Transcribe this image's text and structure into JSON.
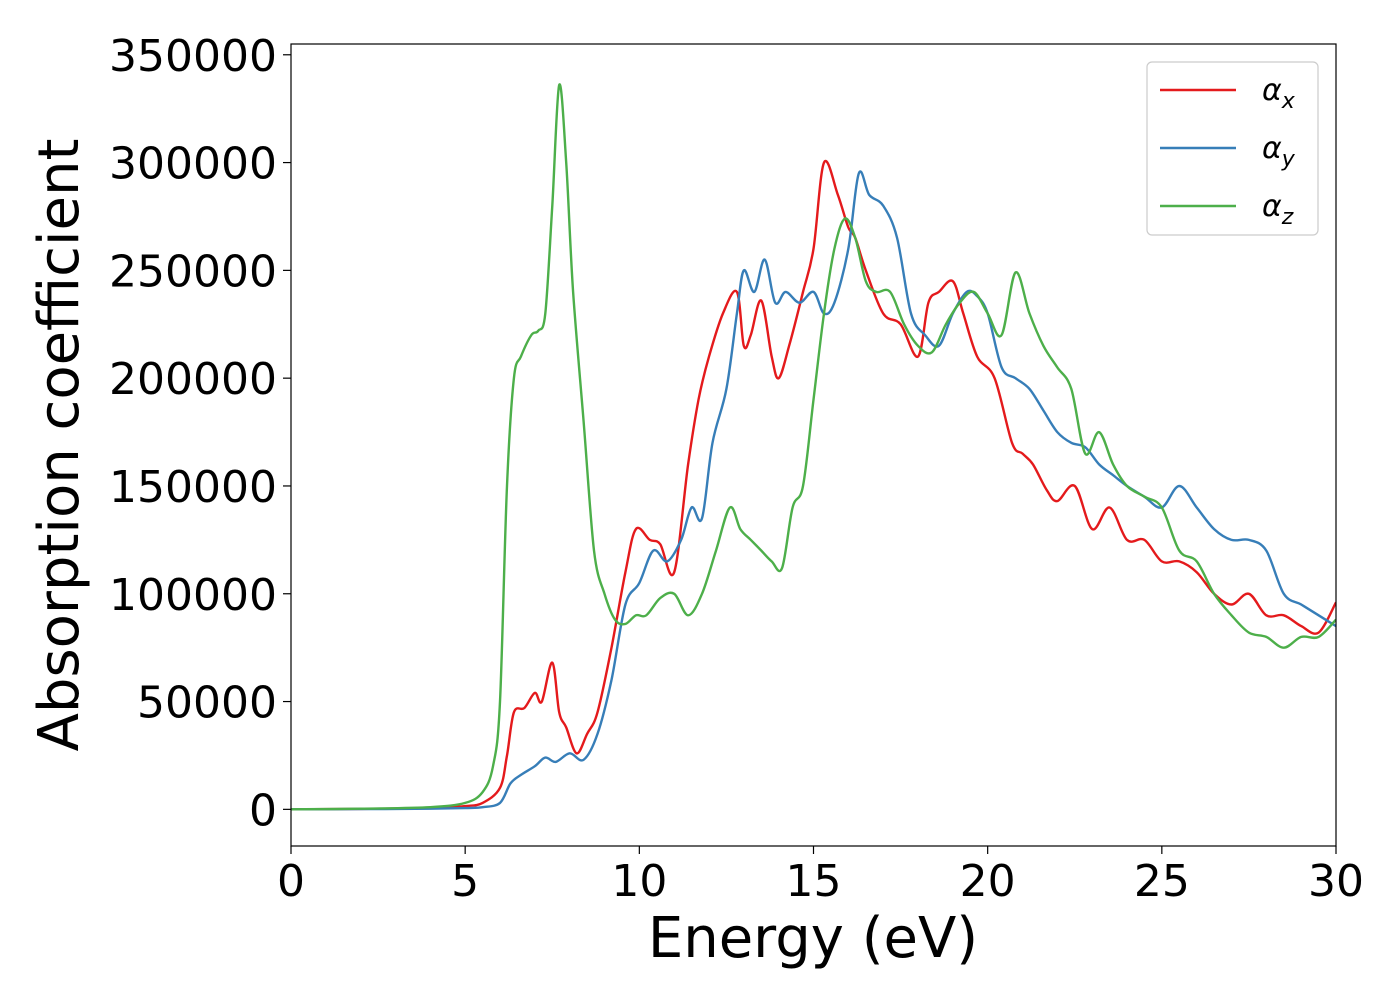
{
  "chart_data": {
    "type": "line",
    "title": "",
    "xlabel": "Energy (eV)",
    "ylabel": "Absorption coefficient",
    "xlim": [
      0,
      30
    ],
    "ylim": [
      -17000,
      355000
    ],
    "xticks": [
      0,
      5,
      10,
      15,
      20,
      25,
      30
    ],
    "yticks": [
      0,
      50000,
      100000,
      150000,
      200000,
      250000,
      300000,
      350000
    ],
    "grid": false,
    "legend_position": "top-right",
    "series": [
      {
        "name": "αx",
        "symbol": "α",
        "subscript": "x",
        "color": "#e41a1c",
        "x": [
          0,
          2,
          4,
          5,
          5.5,
          6,
          6.2,
          6.4,
          6.7,
          7,
          7.2,
          7.5,
          7.7,
          7.9,
          8.2,
          8.5,
          8.8,
          9.2,
          9.6,
          9.9,
          10.3,
          10.6,
          11,
          11.4,
          11.7,
          12,
          12.4,
          12.8,
          13,
          13.2,
          13.5,
          13.8,
          14,
          14.3,
          14.7,
          15,
          15.3,
          15.7,
          16,
          16.2,
          16.5,
          17,
          17.5,
          18,
          18.3,
          18.6,
          19,
          19.3,
          19.7,
          20.2,
          20.7,
          21,
          21.3,
          21.7,
          22,
          22.5,
          23,
          23.5,
          24,
          24.5,
          25,
          25.5,
          26,
          26.5,
          27,
          27.5,
          28,
          28.5,
          29,
          29.5,
          30
        ],
        "y": [
          0,
          200,
          600,
          1500,
          3000,
          10000,
          25000,
          45000,
          47000,
          54000,
          50000,
          68000,
          45000,
          38000,
          26000,
          35000,
          45000,
          75000,
          110000,
          130000,
          125000,
          123000,
          110000,
          160000,
          190000,
          210000,
          230000,
          240000,
          215000,
          220000,
          236000,
          210000,
          200000,
          215000,
          240000,
          260000,
          300000,
          285000,
          270000,
          265000,
          250000,
          230000,
          225000,
          210000,
          235000,
          240000,
          245000,
          230000,
          210000,
          200000,
          170000,
          165000,
          160000,
          148000,
          143000,
          150000,
          130000,
          140000,
          125000,
          125000,
          115000,
          115000,
          110000,
          100000,
          95000,
          100000,
          90000,
          90000,
          85000,
          82000,
          96000
        ]
      },
      {
        "name": "αy",
        "symbol": "α",
        "subscript": "y",
        "color": "#377eb8",
        "x": [
          0,
          2,
          4,
          5,
          5.5,
          6,
          6.3,
          6.6,
          7,
          7.3,
          7.6,
          8,
          8.4,
          8.8,
          9.2,
          9.6,
          10,
          10.4,
          10.8,
          11.2,
          11.5,
          11.8,
          12.1,
          12.5,
          12.8,
          13,
          13.3,
          13.6,
          13.9,
          14.2,
          14.6,
          15,
          15.3,
          15.6,
          16,
          16.3,
          16.6,
          17,
          17.4,
          17.8,
          18.2,
          18.6,
          19,
          19.4,
          19.7,
          20,
          20.4,
          20.8,
          21.2,
          21.6,
          22,
          22.4,
          22.8,
          23.2,
          23.6,
          24,
          24.5,
          25,
          25.5,
          26,
          26.5,
          27,
          27.5,
          28,
          28.5,
          29,
          29.5,
          30
        ],
        "y": [
          0,
          100,
          300,
          600,
          1000,
          3000,
          12000,
          16000,
          20000,
          24000,
          22000,
          26000,
          23000,
          35000,
          60000,
          95000,
          105000,
          120000,
          115000,
          125000,
          140000,
          135000,
          170000,
          195000,
          230000,
          250000,
          240000,
          255000,
          235000,
          240000,
          235000,
          240000,
          230000,
          235000,
          260000,
          295000,
          285000,
          280000,
          265000,
          230000,
          220000,
          215000,
          230000,
          240000,
          238000,
          230000,
          205000,
          200000,
          195000,
          185000,
          175000,
          170000,
          168000,
          160000,
          155000,
          150000,
          145000,
          140000,
          150000,
          140000,
          130000,
          125000,
          125000,
          120000,
          100000,
          95000,
          90000,
          85000
        ]
      },
      {
        "name": "αz",
        "symbol": "α",
        "subscript": "z",
        "color": "#4daf4a",
        "x": [
          0,
          2,
          4,
          5,
          5.5,
          5.8,
          6,
          6.2,
          6.4,
          6.6,
          6.9,
          7.1,
          7.3,
          7.5,
          7.7,
          7.9,
          8.1,
          8.4,
          8.7,
          9,
          9.3,
          9.6,
          9.9,
          10.2,
          10.6,
          11,
          11.4,
          11.8,
          12.2,
          12.6,
          12.9,
          13.2,
          13.5,
          13.8,
          14.1,
          14.4,
          14.7,
          15,
          15.3,
          15.6,
          15.9,
          16.2,
          16.5,
          16.8,
          17.2,
          17.6,
          18,
          18.4,
          18.8,
          19.2,
          19.6,
          20,
          20.4,
          20.8,
          21.2,
          21.6,
          22,
          22.4,
          22.8,
          23.2,
          23.6,
          24,
          24.5,
          25,
          25.5,
          26,
          26.5,
          27,
          27.5,
          28,
          28.5,
          29,
          29.5,
          30
        ],
        "y": [
          0,
          300,
          1000,
          3000,
          8000,
          20000,
          50000,
          150000,
          200000,
          210000,
          220000,
          222000,
          230000,
          280000,
          336000,
          300000,
          240000,
          180000,
          120000,
          100000,
          88000,
          86000,
          90000,
          90000,
          98000,
          100000,
          90000,
          100000,
          120000,
          140000,
          130000,
          125000,
          120000,
          115000,
          112000,
          140000,
          150000,
          190000,
          230000,
          260000,
          274000,
          265000,
          245000,
          240000,
          240000,
          225000,
          215000,
          212000,
          225000,
          235000,
          240000,
          230000,
          220000,
          249000,
          230000,
          215000,
          205000,
          195000,
          165000,
          175000,
          160000,
          150000,
          145000,
          140000,
          120000,
          115000,
          100000,
          90000,
          82000,
          80000,
          75000,
          80000,
          80000,
          88000
        ]
      }
    ]
  }
}
